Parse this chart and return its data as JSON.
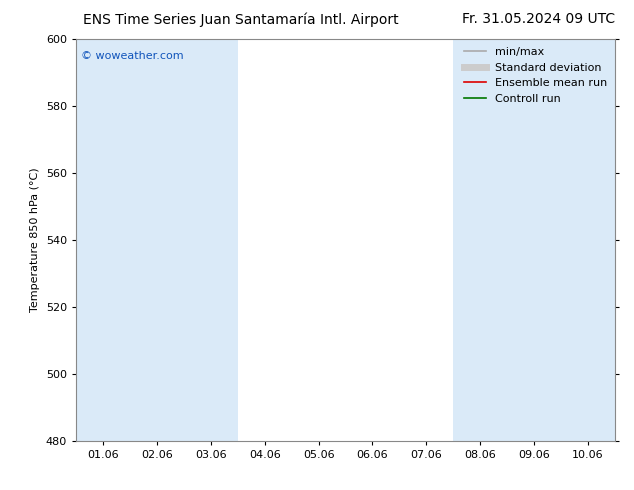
{
  "title_left": "ENS Time Series Juan Santamaría Intl. Airport",
  "title_right": "Fr. 31.05.2024 09 UTC",
  "ylabel": "Temperature 850 hPa (°C)",
  "ylim": [
    480,
    600
  ],
  "yticks": [
    480,
    500,
    520,
    540,
    560,
    580,
    600
  ],
  "xtick_labels": [
    "01.06",
    "02.06",
    "03.06",
    "04.06",
    "05.06",
    "06.06",
    "07.06",
    "08.06",
    "09.06",
    "10.06"
  ],
  "xtick_positions": [
    0,
    1,
    2,
    3,
    4,
    5,
    6,
    7,
    8,
    9
  ],
  "bg_color": "#ffffff",
  "plot_bg_color": "#ffffff",
  "band_color": "#daeaf8",
  "bands": [
    0,
    1,
    2,
    7,
    8,
    9
  ],
  "watermark": "© woweather.com",
  "watermark_color": "#1155bb",
  "legend_items": [
    {
      "label": "min/max",
      "color": "#aaaaaa",
      "lw": 1.2,
      "style": "solid"
    },
    {
      "label": "Standard deviation",
      "color": "#cccccc",
      "lw": 5,
      "style": "solid"
    },
    {
      "label": "Ensemble mean run",
      "color": "#dd0000",
      "lw": 1.2,
      "style": "solid"
    },
    {
      "label": "Controll run",
      "color": "#007700",
      "lw": 1.2,
      "style": "solid"
    }
  ],
  "title_fontsize": 10,
  "axis_fontsize": 8,
  "tick_fontsize": 8,
  "legend_fontsize": 8,
  "watermark_fontsize": 8,
  "xmin": -0.5,
  "xmax": 9.5
}
